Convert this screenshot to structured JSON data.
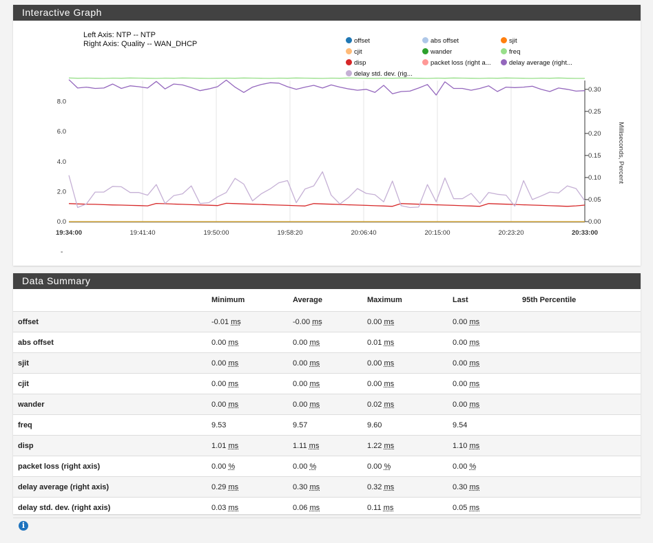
{
  "graph_panel": {
    "title": "Interactive Graph",
    "left_axis_info": "Left Axis: NTP -- NTP",
    "right_axis_info": "Right Axis: Quality -- WAN_DHCP",
    "dash": "-"
  },
  "legend": [
    {
      "label": "offset",
      "color": "#1f77b4"
    },
    {
      "label": "abs offset",
      "color": "#aec7e8"
    },
    {
      "label": "sjit",
      "color": "#ff7f0e"
    },
    {
      "label": "cjit",
      "color": "#ffbb78"
    },
    {
      "label": "wander",
      "color": "#2ca02c"
    },
    {
      "label": "freq",
      "color": "#98df8a"
    },
    {
      "label": "disp",
      "color": "#d62728"
    },
    {
      "label": "packet loss (right a...",
      "color": "#ff9896"
    },
    {
      "label": "delay average (right...",
      "color": "#9467bd"
    },
    {
      "label": "delay std. dev. (rig...",
      "color": "#c5b0d5"
    }
  ],
  "chart_data": {
    "type": "line",
    "x_ticks": [
      "19:34:00",
      "19:41:40",
      "19:50:00",
      "19:58:20",
      "20:06:40",
      "20:15:00",
      "20:23:20",
      "20:33:00"
    ],
    "y_left_ticks": [
      "0.0",
      "2.0",
      "4.0",
      "6.0",
      "8.0"
    ],
    "y_left_range": [
      0,
      9.4
    ],
    "y_right_ticks": [
      "0.00",
      "0.05",
      "0.10",
      "0.15",
      "0.20",
      "0.25",
      "0.30"
    ],
    "y_right_range": [
      0,
      0.32
    ],
    "right_axis_label": "Milliseconds, Percent",
    "series": [
      {
        "name": "freq",
        "axis": "left",
        "color": "#98df8a",
        "values": [
          9.57,
          9.55,
          9.56,
          9.55,
          9.54,
          9.56,
          9.55,
          9.57,
          9.56,
          9.55,
          9.54,
          9.56,
          9.55,
          9.57,
          9.56,
          9.55,
          9.54,
          9.55,
          9.56,
          9.55,
          9.57,
          9.56,
          9.55,
          9.54,
          9.56,
          9.55,
          9.57,
          9.56,
          9.55,
          9.54,
          9.56,
          9.55,
          9.57,
          9.56,
          9.55,
          9.54,
          9.56,
          9.55,
          9.57,
          9.56,
          9.55,
          9.54,
          9.56,
          9.55,
          9.57,
          9.56,
          9.55,
          9.54,
          9.56,
          9.55,
          9.57,
          9.56,
          9.55,
          9.54,
          9.56,
          9.55,
          9.57,
          9.55,
          9.54,
          9.54
        ]
      },
      {
        "name": "disp",
        "axis": "left",
        "color": "#d62728",
        "values": [
          1.2,
          1.18,
          1.16,
          1.15,
          1.13,
          1.11,
          1.1,
          1.08,
          1.07,
          1.05,
          1.21,
          1.19,
          1.17,
          1.15,
          1.13,
          1.11,
          1.09,
          1.07,
          1.22,
          1.2,
          1.18,
          1.16,
          1.14,
          1.12,
          1.1,
          1.08,
          1.06,
          1.04,
          1.2,
          1.18,
          1.16,
          1.14,
          1.12,
          1.1,
          1.08,
          1.06,
          1.04,
          1.02,
          1.2,
          1.18,
          1.16,
          1.14,
          1.12,
          1.1,
          1.08,
          1.06,
          1.04,
          1.02,
          1.2,
          1.18,
          1.16,
          1.14,
          1.12,
          1.1,
          1.08,
          1.06,
          1.04,
          1.02,
          1.05,
          1.1
        ]
      },
      {
        "name": "delay average",
        "axis": "right",
        "color": "#9467bd",
        "values": [
          0.322,
          0.303,
          0.305,
          0.302,
          0.303,
          0.312,
          0.302,
          0.308,
          0.306,
          0.303,
          0.318,
          0.301,
          0.312,
          0.31,
          0.304,
          0.297,
          0.301,
          0.306,
          0.321,
          0.305,
          0.293,
          0.305,
          0.311,
          0.315,
          0.314,
          0.306,
          0.3,
          0.305,
          0.309,
          0.303,
          0.31,
          0.305,
          0.301,
          0.298,
          0.3,
          0.293,
          0.309,
          0.29,
          0.295,
          0.296,
          0.303,
          0.311,
          0.287,
          0.317,
          0.302,
          0.302,
          0.298,
          0.302,
          0.308,
          0.295,
          0.305,
          0.304,
          0.305,
          0.307,
          0.3,
          0.295,
          0.303,
          0.3,
          0.296,
          0.297
        ]
      },
      {
        "name": "delay std. dev.",
        "axis": "right",
        "color": "#c5b0d5",
        "values": [
          0.105,
          0.032,
          0.04,
          0.067,
          0.067,
          0.08,
          0.079,
          0.066,
          0.066,
          0.06,
          0.084,
          0.041,
          0.059,
          0.063,
          0.081,
          0.041,
          0.043,
          0.056,
          0.066,
          0.098,
          0.085,
          0.047,
          0.063,
          0.074,
          0.088,
          0.093,
          0.043,
          0.074,
          0.081,
          0.113,
          0.06,
          0.04,
          0.055,
          0.075,
          0.064,
          0.061,
          0.045,
          0.092,
          0.036,
          0.032,
          0.033,
          0.084,
          0.045,
          0.099,
          0.052,
          0.052,
          0.064,
          0.041,
          0.066,
          0.062,
          0.06,
          0.035,
          0.093,
          0.05,
          0.058,
          0.067,
          0.065,
          0.081,
          0.075,
          0.047
        ]
      },
      {
        "name": "offset",
        "axis": "left",
        "color": "#d4a020",
        "values": [
          0.0,
          0.0,
          0.0,
          0.0,
          0.0,
          0.0,
          0.0,
          0.0,
          0.0,
          0.0,
          0.0,
          0.0,
          0.0,
          0.0,
          0.0,
          0.0,
          0.0,
          0.0,
          0.0,
          0.0,
          0.0,
          0.0,
          0.0,
          0.0,
          0.0,
          0.0,
          0.0,
          0.0,
          0.0,
          0.0,
          0.0,
          0.0,
          0.0,
          0.0,
          0.0,
          0.0,
          0.0,
          0.0,
          0.0,
          0.0,
          0.0,
          0.0,
          0.0,
          0.0,
          0.0,
          0.0,
          0.0,
          0.0,
          0.0,
          0.0,
          0.0,
          0.0,
          0.0,
          0.0,
          0.0,
          0.0,
          0.0,
          0.0,
          0.0,
          0.0
        ]
      }
    ]
  },
  "summary_panel": {
    "title": "Data Summary",
    "columns": [
      "",
      "Minimum",
      "Average",
      "Maximum",
      "Last",
      "95th Percentile"
    ],
    "rows": [
      {
        "label": "offset",
        "min": "-0.01",
        "avg": "-0.00",
        "max": "0.00",
        "last": "0.00",
        "unit": "ms"
      },
      {
        "label": "abs offset",
        "min": "0.00",
        "avg": "0.00",
        "max": "0.01",
        "last": "0.00",
        "unit": "ms"
      },
      {
        "label": "sjit",
        "min": "0.00",
        "avg": "0.00",
        "max": "0.00",
        "last": "0.00",
        "unit": "ms"
      },
      {
        "label": "cjit",
        "min": "0.00",
        "avg": "0.00",
        "max": "0.00",
        "last": "0.00",
        "unit": "ms"
      },
      {
        "label": "wander",
        "min": "0.00",
        "avg": "0.00",
        "max": "0.02",
        "last": "0.00",
        "unit": "ms"
      },
      {
        "label": "freq",
        "min": "9.53",
        "avg": "9.57",
        "max": "9.60",
        "last": "9.54",
        "unit": ""
      },
      {
        "label": "disp",
        "min": "1.01",
        "avg": "1.11",
        "max": "1.22",
        "last": "1.10",
        "unit": "ms"
      },
      {
        "label": "packet loss (right axis)",
        "min": "0.00",
        "avg": "0.00",
        "max": "0.00",
        "last": "0.00",
        "unit": "%"
      },
      {
        "label": "delay average (right axis)",
        "min": "0.29",
        "avg": "0.30",
        "max": "0.32",
        "last": "0.30",
        "unit": "ms"
      },
      {
        "label": "delay std. dev. (right axis)",
        "min": "0.03",
        "avg": "0.06",
        "max": "0.11",
        "last": "0.05",
        "unit": "ms"
      }
    ]
  }
}
